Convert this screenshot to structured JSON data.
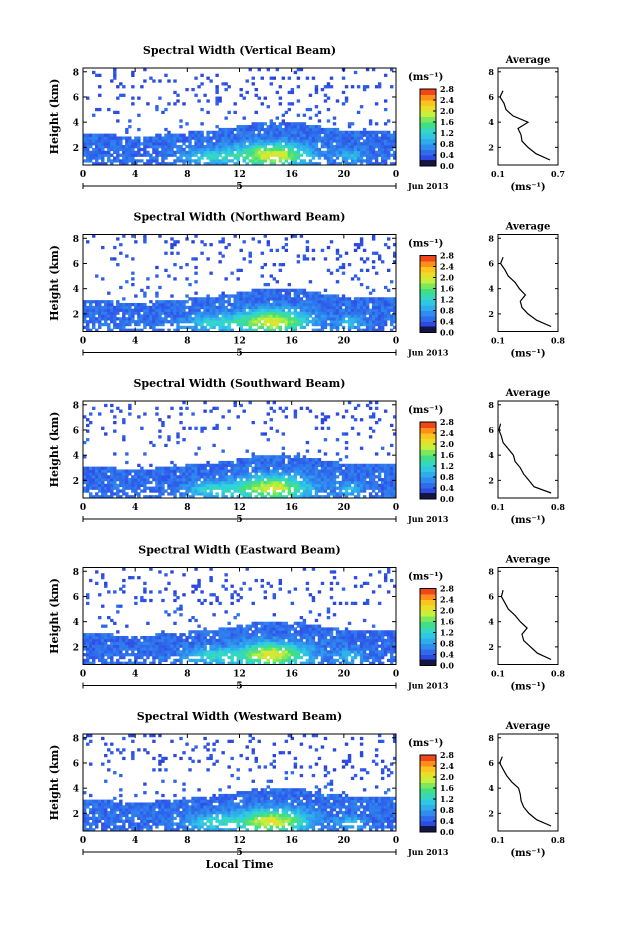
{
  "figure": {
    "xlabel": "Local Time",
    "ylabel": "Height (km)",
    "date_label": "Jun 2013",
    "day_label": "5",
    "x_ticks": [
      "0",
      "4",
      "8",
      "12",
      "16",
      "20",
      "0"
    ],
    "y_ticks": [
      "2",
      "4",
      "6",
      "8"
    ],
    "colorbar_unit": "(ms⁻¹)",
    "colorbar_ticks": [
      "0.0",
      "0.4",
      "0.8",
      "1.2",
      "1.6",
      "2.0",
      "2.4",
      "2.8"
    ],
    "avg_title": "Average",
    "avg_unit": "(ms⁻¹)",
    "avg_y_ticks": [
      "2",
      "4",
      "6",
      "8"
    ]
  },
  "chart_data": [
    {
      "type": "heatmap",
      "title": "Spectral Width (Vertical Beam)",
      "xlabel": "",
      "ylabel": "Height (km)",
      "xlim": [
        0,
        24
      ],
      "ylim": [
        0.6,
        8.3
      ],
      "colorbar_range": [
        0.0,
        2.8
      ],
      "average_profile": {
        "xlim": [
          0.1,
          0.7
        ],
        "x_ticks": [
          "0.1",
          "0.7"
        ],
        "height": [
          1.0,
          1.5,
          2.0,
          2.5,
          3.0,
          3.5,
          4.0,
          4.5,
          5.0,
          5.5,
          6.0,
          6.5
        ],
        "value": [
          0.62,
          0.48,
          0.4,
          0.34,
          0.33,
          0.3,
          0.4,
          0.25,
          0.18,
          0.16,
          0.12,
          0.15
        ]
      }
    },
    {
      "type": "heatmap",
      "title": "Spectral Width (Northward Beam)",
      "xlabel": "",
      "ylabel": "Height (km)",
      "xlim": [
        0,
        24
      ],
      "ylim": [
        0.6,
        8.3
      ],
      "colorbar_range": [
        0.0,
        2.8
      ],
      "average_profile": {
        "xlim": [
          0.1,
          0.8
        ],
        "x_ticks": [
          "0.1",
          "0.8"
        ],
        "height": [
          1.0,
          1.5,
          2.0,
          2.5,
          3.0,
          3.5,
          4.0,
          4.5,
          5.0,
          5.5,
          6.0,
          6.5
        ],
        "value": [
          0.72,
          0.55,
          0.45,
          0.38,
          0.36,
          0.42,
          0.35,
          0.3,
          0.22,
          0.18,
          0.13,
          0.16
        ]
      }
    },
    {
      "type": "heatmap",
      "title": "Spectral Width (Southward Beam)",
      "xlabel": "",
      "ylabel": "Height (km)",
      "xlim": [
        0,
        24
      ],
      "ylim": [
        0.6,
        8.3
      ],
      "colorbar_range": [
        0.0,
        2.8
      ],
      "average_profile": {
        "xlim": [
          0.1,
          0.8
        ],
        "x_ticks": [
          "0.1",
          "0.8"
        ],
        "height": [
          1.0,
          1.5,
          2.0,
          2.5,
          3.0,
          3.5,
          4.0,
          4.5,
          5.0,
          5.5,
          6.0,
          6.5
        ],
        "value": [
          0.72,
          0.52,
          0.46,
          0.4,
          0.36,
          0.3,
          0.28,
          0.22,
          0.16,
          0.14,
          0.11,
          0.13
        ]
      }
    },
    {
      "type": "heatmap",
      "title": "Spectral Width (Eastward Beam)",
      "xlabel": "",
      "ylabel": "Height (km)",
      "xlim": [
        0,
        24
      ],
      "ylim": [
        0.6,
        8.3
      ],
      "colorbar_range": [
        0.0,
        2.8
      ],
      "average_profile": {
        "xlim": [
          0.1,
          0.8
        ],
        "x_ticks": [
          "0.1",
          "0.8"
        ],
        "height": [
          1.0,
          1.5,
          2.0,
          2.5,
          3.0,
          3.5,
          4.0,
          4.5,
          5.0,
          5.5,
          6.0,
          6.5
        ],
        "value": [
          0.72,
          0.56,
          0.48,
          0.4,
          0.38,
          0.44,
          0.36,
          0.3,
          0.22,
          0.18,
          0.14,
          0.16
        ]
      }
    },
    {
      "type": "heatmap",
      "title": "Spectral Width (Westward Beam)",
      "xlabel": "Local Time",
      "ylabel": "Height (km)",
      "xlim": [
        0,
        24
      ],
      "ylim": [
        0.6,
        8.3
      ],
      "colorbar_range": [
        0.0,
        2.8
      ],
      "average_profile": {
        "xlim": [
          0.1,
          0.8
        ],
        "x_ticks": [
          "0.1",
          "0.8"
        ],
        "height": [
          1.0,
          1.5,
          2.0,
          2.5,
          3.0,
          3.5,
          4.0,
          4.5,
          5.0,
          5.5,
          6.0,
          6.5
        ],
        "value": [
          0.72,
          0.55,
          0.46,
          0.4,
          0.37,
          0.36,
          0.34,
          0.26,
          0.2,
          0.16,
          0.12,
          0.15
        ]
      }
    }
  ]
}
